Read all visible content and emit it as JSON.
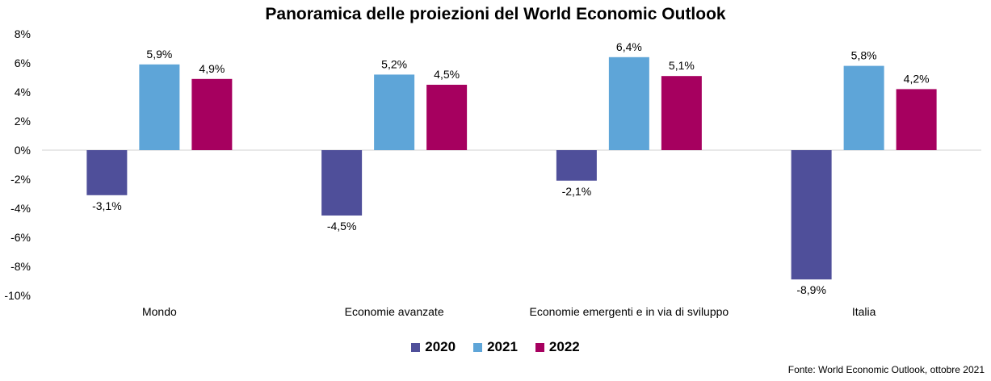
{
  "chart_data": {
    "type": "bar",
    "title": "Panoramica delle proiezioni del World Economic Outlook",
    "categories": [
      "Mondo",
      "Economie avanzate",
      "Economie emergenti e in via di sviluppo",
      "Italia"
    ],
    "series": [
      {
        "name": "2020",
        "color": "#4f4f9a",
        "values": [
          -3.1,
          -4.5,
          -2.1,
          -8.9
        ]
      },
      {
        "name": "2021",
        "color": "#5ea5d8",
        "values": [
          5.9,
          5.2,
          6.4,
          5.8
        ]
      },
      {
        "name": "2022",
        "color": "#a6005f",
        "values": [
          4.9,
          4.5,
          5.1,
          4.2
        ]
      }
    ],
    "ylim": [
      -10,
      8
    ],
    "yticks": [
      8,
      6,
      4,
      2,
      0,
      -2,
      -4,
      -6,
      -8,
      -10
    ],
    "ytick_labels": [
      "8%",
      "6%",
      "4%",
      "2%",
      "0%",
      "-2%",
      "-4%",
      "-6%",
      "-8%",
      "-10%"
    ],
    "data_labels": [
      [
        "-3,1%",
        "-4,5%",
        "-2,1%",
        "-8,9%"
      ],
      [
        "5,9%",
        "5,2%",
        "6,4%",
        "5,8%"
      ],
      [
        "4,9%",
        "4,5%",
        "5,1%",
        "4,2%"
      ]
    ],
    "xlabel": "",
    "ylabel": "",
    "legend_position": "bottom-center"
  },
  "source": "Fonte: World Economic Outlook, ottobre 2021"
}
